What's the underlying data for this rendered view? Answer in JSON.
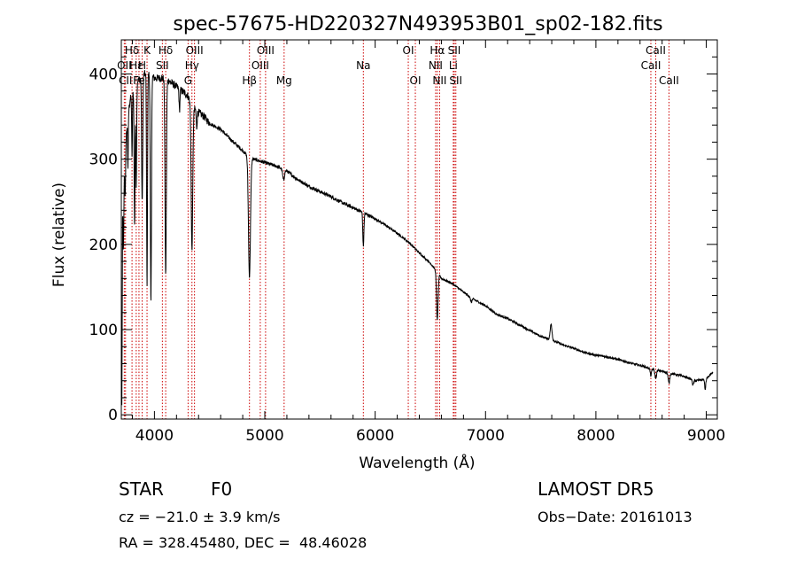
{
  "chart_data": {
    "type": "line",
    "title": "spec-57675-HD220327N493953B01_sp02-182.fits",
    "xlabel": "Wavelength (Å)",
    "ylabel": "Flux (relative)",
    "xlim": [
      3700,
      9100
    ],
    "ylim": [
      -5,
      440
    ],
    "xticks": [
      "4000",
      "5000",
      "6000",
      "7000",
      "8000",
      "9000"
    ],
    "yticks": [
      "0",
      "100",
      "200",
      "300",
      "400"
    ],
    "xtick_values": [
      4000,
      5000,
      6000,
      7000,
      8000,
      9000
    ],
    "ytick_values": [
      0,
      100,
      200,
      300,
      400
    ],
    "line_color": "#000000",
    "marker_color": "#cc0000",
    "continuum": [
      [
        3705,
        10
      ],
      [
        3712,
        250
      ],
      [
        3725,
        300
      ],
      [
        3740,
        320
      ],
      [
        3760,
        350
      ],
      [
        3780,
        370
      ],
      [
        3800,
        375
      ],
      [
        3830,
        390
      ],
      [
        3870,
        395
      ],
      [
        3900,
        400
      ],
      [
        3950,
        400
      ],
      [
        4000,
        395
      ],
      [
        4050,
        395
      ],
      [
        4100,
        395
      ],
      [
        4150,
        390
      ],
      [
        4200,
        385
      ],
      [
        4250,
        380
      ],
      [
        4300,
        375
      ],
      [
        4350,
        360
      ],
      [
        4400,
        355
      ],
      [
        4450,
        350
      ],
      [
        4500,
        342
      ],
      [
        4600,
        335
      ],
      [
        4700,
        322
      ],
      [
        4800,
        310
      ],
      [
        4860,
        302
      ],
      [
        4900,
        300
      ],
      [
        5000,
        296
      ],
      [
        5100,
        292
      ],
      [
        5200,
        286
      ],
      [
        5300,
        276
      ],
      [
        5400,
        268
      ],
      [
        5500,
        262
      ],
      [
        5600,
        256
      ],
      [
        5700,
        249
      ],
      [
        5800,
        243
      ],
      [
        5900,
        237
      ],
      [
        6000,
        230
      ],
      [
        6100,
        222
      ],
      [
        6200,
        213
      ],
      [
        6300,
        203
      ],
      [
        6400,
        190
      ],
      [
        6500,
        178
      ],
      [
        6560,
        168
      ],
      [
        6600,
        160
      ],
      [
        6700,
        154
      ],
      [
        6800,
        144
      ],
      [
        6900,
        135
      ],
      [
        7000,
        128
      ],
      [
        7100,
        118
      ],
      [
        7200,
        113
      ],
      [
        7300,
        106
      ],
      [
        7400,
        99
      ],
      [
        7500,
        92
      ],
      [
        7600,
        88
      ],
      [
        7700,
        82
      ],
      [
        7800,
        78
      ],
      [
        7900,
        73
      ],
      [
        8000,
        70
      ],
      [
        8100,
        68
      ],
      [
        8200,
        65
      ],
      [
        8300,
        61
      ],
      [
        8400,
        58
      ],
      [
        8500,
        54
      ],
      [
        8600,
        51
      ],
      [
        8700,
        48
      ],
      [
        8800,
        45
      ],
      [
        8900,
        40
      ],
      [
        9000,
        42
      ],
      [
        9060,
        50
      ]
    ],
    "absorption_features": [
      [
        3720,
        85,
        4
      ],
      [
        3735,
        55,
        4
      ],
      [
        3760,
        60,
        3
      ],
      [
        3797,
        75,
        3
      ],
      [
        3820,
        165,
        4
      ],
      [
        3835,
        120,
        4
      ],
      [
        3889,
        150,
        5
      ],
      [
        3933,
        250,
        4
      ],
      [
        3968,
        270,
        5
      ],
      [
        4102,
        230,
        6
      ],
      [
        4227,
        25,
        4
      ],
      [
        4340,
        170,
        7
      ],
      [
        4383,
        20,
        4
      ],
      [
        4861,
        140,
        9
      ],
      [
        5170,
        12,
        8
      ],
      [
        5893,
        40,
        5
      ],
      [
        6563,
        55,
        7
      ],
      [
        6870,
        5,
        8
      ],
      [
        7594,
        -18,
        8
      ],
      [
        8498,
        8,
        6
      ],
      [
        8542,
        10,
        7
      ],
      [
        8662,
        12,
        7
      ],
      [
        8880,
        6,
        6
      ],
      [
        8990,
        12,
        5
      ]
    ],
    "lines": [
      {
        "name": "Hδ",
        "x": 3797,
        "row": 1
      },
      {
        "name": "OII",
        "x": 3727,
        "row": 2
      },
      {
        "name": "CII",
        "x": 3738,
        "row": 3
      },
      {
        "name": "Hε",
        "x": 3835,
        "row": 2
      },
      {
        "name": "Fe",
        "x": 3860,
        "row": 3
      },
      {
        "name": "K",
        "x": 3933,
        "row": 1
      },
      {
        "name": "H",
        "x": 3889,
        "row": 2
      },
      {
        "name": "Hδ",
        "x": 4102,
        "row": 1
      },
      {
        "name": "SII",
        "x": 4072,
        "row": 2
      },
      {
        "name": "OIII",
        "x": 4363,
        "row": 1
      },
      {
        "name": "Hγ",
        "x": 4340,
        "row": 2
      },
      {
        "name": "G",
        "x": 4305,
        "row": 3
      },
      {
        "name": "OIII",
        "x": 5007,
        "row": 1
      },
      {
        "name": "OIII",
        "x": 4959,
        "row": 2
      },
      {
        "name": "Hβ",
        "x": 4861,
        "row": 3
      },
      {
        "name": "Mg",
        "x": 5175,
        "row": 3
      },
      {
        "name": "Na",
        "x": 5893,
        "row": 2
      },
      {
        "name": "OI",
        "x": 6300,
        "row": 1
      },
      {
        "name": "OI",
        "x": 6364,
        "row": 3
      },
      {
        "name": "Hα",
        "x": 6563,
        "row": 1
      },
      {
        "name": "NII",
        "x": 6548,
        "row": 2
      },
      {
        "name": "NII",
        "x": 6584,
        "row": 3
      },
      {
        "name": "SII",
        "x": 6717,
        "row": 1
      },
      {
        "name": "Li",
        "x": 6708,
        "row": 2
      },
      {
        "name": "SII",
        "x": 6731,
        "row": 3
      },
      {
        "name": "CaII",
        "x": 8542,
        "row": 1
      },
      {
        "name": "CaII",
        "x": 8498,
        "row": 2
      },
      {
        "name": "CaII",
        "x": 8662,
        "row": 3
      }
    ]
  },
  "info": {
    "class_label": "STAR",
    "subclass": "F0",
    "survey": "LAMOST DR5",
    "cz": "cz = −21.0 ± 3.9 km/s",
    "obs_date": "Obs−Date: 20161013",
    "coords": "RA = 328.45480, DEC =  48.46028"
  }
}
